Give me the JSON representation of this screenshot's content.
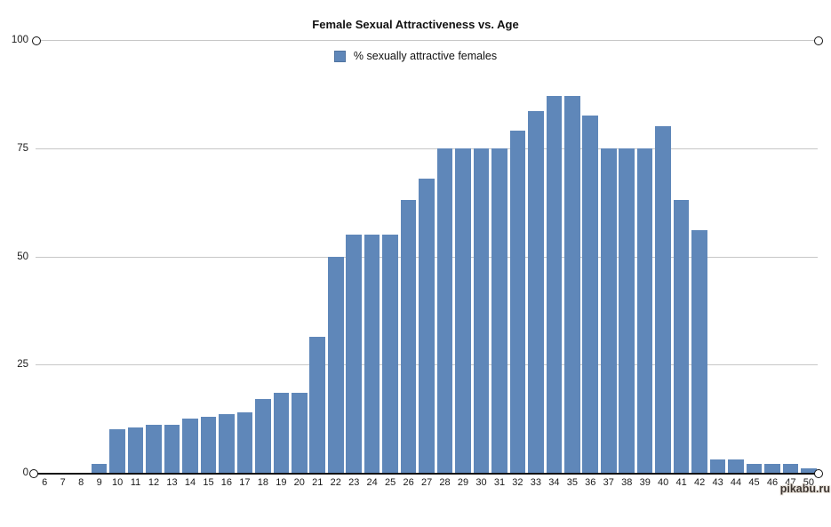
{
  "title": "Female Sexual Attractiveness vs. Age",
  "legend": {
    "label": "% sexually attractive females",
    "swatch_color": "#5F87B9"
  },
  "watermark": "pikabu.ru",
  "colors": {
    "bar": "#5F87B9",
    "gridline": "#c7c7c7",
    "axis": "#111111",
    "background": "#ffffff"
  },
  "chart_data": {
    "type": "bar",
    "title": "Female Sexual Attractiveness vs. Age",
    "xlabel": "",
    "ylabel": "",
    "legend_entries": [
      "% sexually attractive females"
    ],
    "legend_position": "top-center",
    "grid": true,
    "ylim": [
      0,
      100
    ],
    "y_ticks": [
      0,
      25,
      50,
      75,
      100
    ],
    "y_tick_labels": [
      "0",
      "25",
      "50",
      "75",
      "100"
    ],
    "categories": [
      "6",
      "7",
      "8",
      "9",
      "10",
      "11",
      "12",
      "13",
      "14",
      "15",
      "16",
      "17",
      "18",
      "19",
      "20",
      "21",
      "22",
      "23",
      "24",
      "25",
      "26",
      "27",
      "28",
      "29",
      "30",
      "31",
      "32",
      "33",
      "34",
      "35",
      "36",
      "37",
      "38",
      "39",
      "40",
      "41",
      "42",
      "43",
      "44",
      "45",
      "46",
      "47",
      "50"
    ],
    "values": [
      0,
      0,
      0,
      2,
      10,
      10.5,
      11,
      11,
      12.5,
      13,
      13.5,
      14,
      17,
      18.5,
      18.5,
      31.5,
      50,
      55,
      55,
      55,
      63,
      68,
      75,
      75,
      75,
      75,
      79,
      83.5,
      87,
      87,
      82.5,
      75,
      75,
      75,
      80,
      63,
      56,
      3,
      3,
      2,
      2,
      2,
      1
    ]
  }
}
